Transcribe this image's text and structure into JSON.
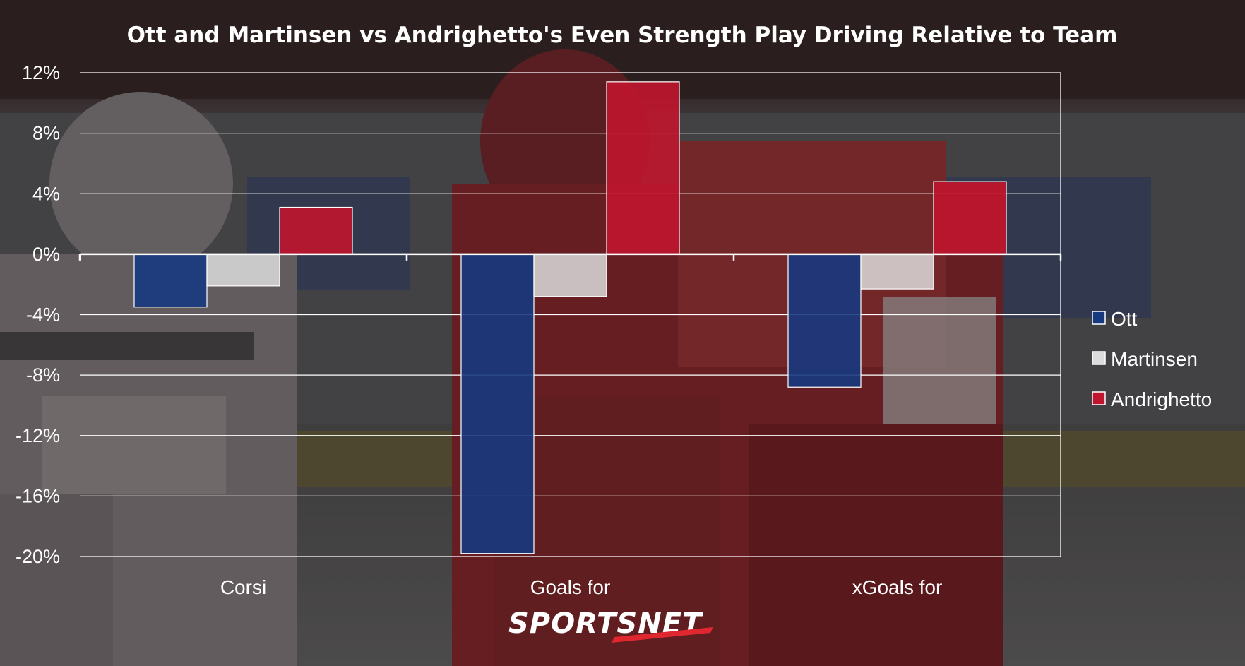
{
  "logo": {
    "text": "SPORTSNET",
    "color": "#ffffff",
    "accent_color": "#e0262f"
  },
  "legend": {
    "placement": "right",
    "items": [
      {
        "name": "Ott",
        "color": "#17397f"
      },
      {
        "name": "Martinsen",
        "color": "#dcdcdc"
      },
      {
        "name": "Andrighetto",
        "color": "#c0152e"
      }
    ]
  },
  "chart_data": {
    "type": "bar",
    "title": "Ott and Martinsen vs Andrighetto's Even Strength Play Driving Relative to Team",
    "xlabel": "",
    "ylabel": "",
    "categories": [
      "Corsi",
      "Goals for",
      "xGoals for"
    ],
    "series": [
      {
        "name": "Ott",
        "color": "#17397f",
        "values": [
          -3.5,
          -19.8,
          -8.8
        ]
      },
      {
        "name": "Martinsen",
        "color": "#dcdcdc",
        "values": [
          -2.1,
          -2.8,
          -2.3
        ]
      },
      {
        "name": "Andrighetto",
        "color": "#c0152e",
        "values": [
          3.1,
          11.4,
          4.8
        ]
      }
    ],
    "ylim": [
      -20,
      12
    ],
    "yticks": [
      12,
      8,
      4,
      0,
      -4,
      -8,
      -12,
      -16,
      -20
    ],
    "ytick_labels": [
      "12%",
      "8%",
      "4%",
      "0%",
      "-4%",
      "-8%",
      "-12%",
      "-16%",
      "-20%"
    ],
    "grid": true,
    "legend_placement": "right"
  }
}
